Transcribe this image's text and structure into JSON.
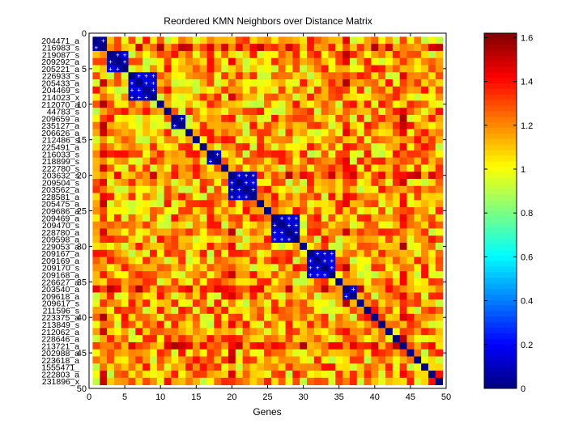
{
  "chart_data": {
    "type": "heatmap",
    "title": "Reordered KMN Neighbors over Distance Matrix",
    "xlabel": "Genes",
    "ylabel": "",
    "xlim": [
      0,
      50
    ],
    "ylim": [
      50,
      0
    ],
    "x_ticks": [
      "0",
      "5",
      "10",
      "15",
      "20",
      "25",
      "30",
      "35",
      "40",
      "45",
      "50"
    ],
    "y_ticks": [
      "0",
      "5",
      "10",
      "15",
      "20",
      "25",
      "30",
      "35",
      "40",
      "45",
      "50"
    ],
    "genes": [
      "204471_a",
      "216983_s",
      "219087_s",
      "209292_a",
      "205221_a",
      "226933_s",
      "205433_a",
      "204469_s",
      "214023_x",
      "212070_a",
      "44783_s",
      "209659_a",
      "235127_a",
      "206626_a",
      "212486_s",
      "225491_a",
      "216033_s",
      "218899_s",
      "222780_s",
      "203632_s",
      "209504_s",
      "203562_a",
      "228581_a",
      "205475_a",
      "209686_a",
      "209469_a",
      "209470_s",
      "228780_a",
      "209598_a",
      "229053_a",
      "209167_a",
      "209169_a",
      "209170_s",
      "209168_a",
      "226627_a",
      "203540_a",
      "209618_a",
      "209617_s",
      "211596_s",
      "223375_a",
      "213849_s",
      "212062_a",
      "228646_a",
      "213721_a",
      "202988_a",
      "223618_a",
      "1555471_",
      "222803_a",
      "231896_x"
    ],
    "neighbor_blocks": [
      [
        1,
        2
      ],
      [
        3,
        5
      ],
      [
        6,
        9
      ],
      [
        12,
        13
      ],
      [
        17,
        18
      ],
      [
        20,
        23
      ],
      [
        26,
        29
      ],
      [
        31,
        34
      ],
      [
        36,
        37
      ]
    ],
    "n_genes": 49,
    "value_range": [
      0,
      1.62
    ],
    "colorbar_ticks": [
      "0",
      "0.2",
      "0.4",
      "0.6",
      "0.8",
      "1",
      "1.2",
      "1.4",
      "1.6"
    ],
    "colormap": "jet"
  }
}
